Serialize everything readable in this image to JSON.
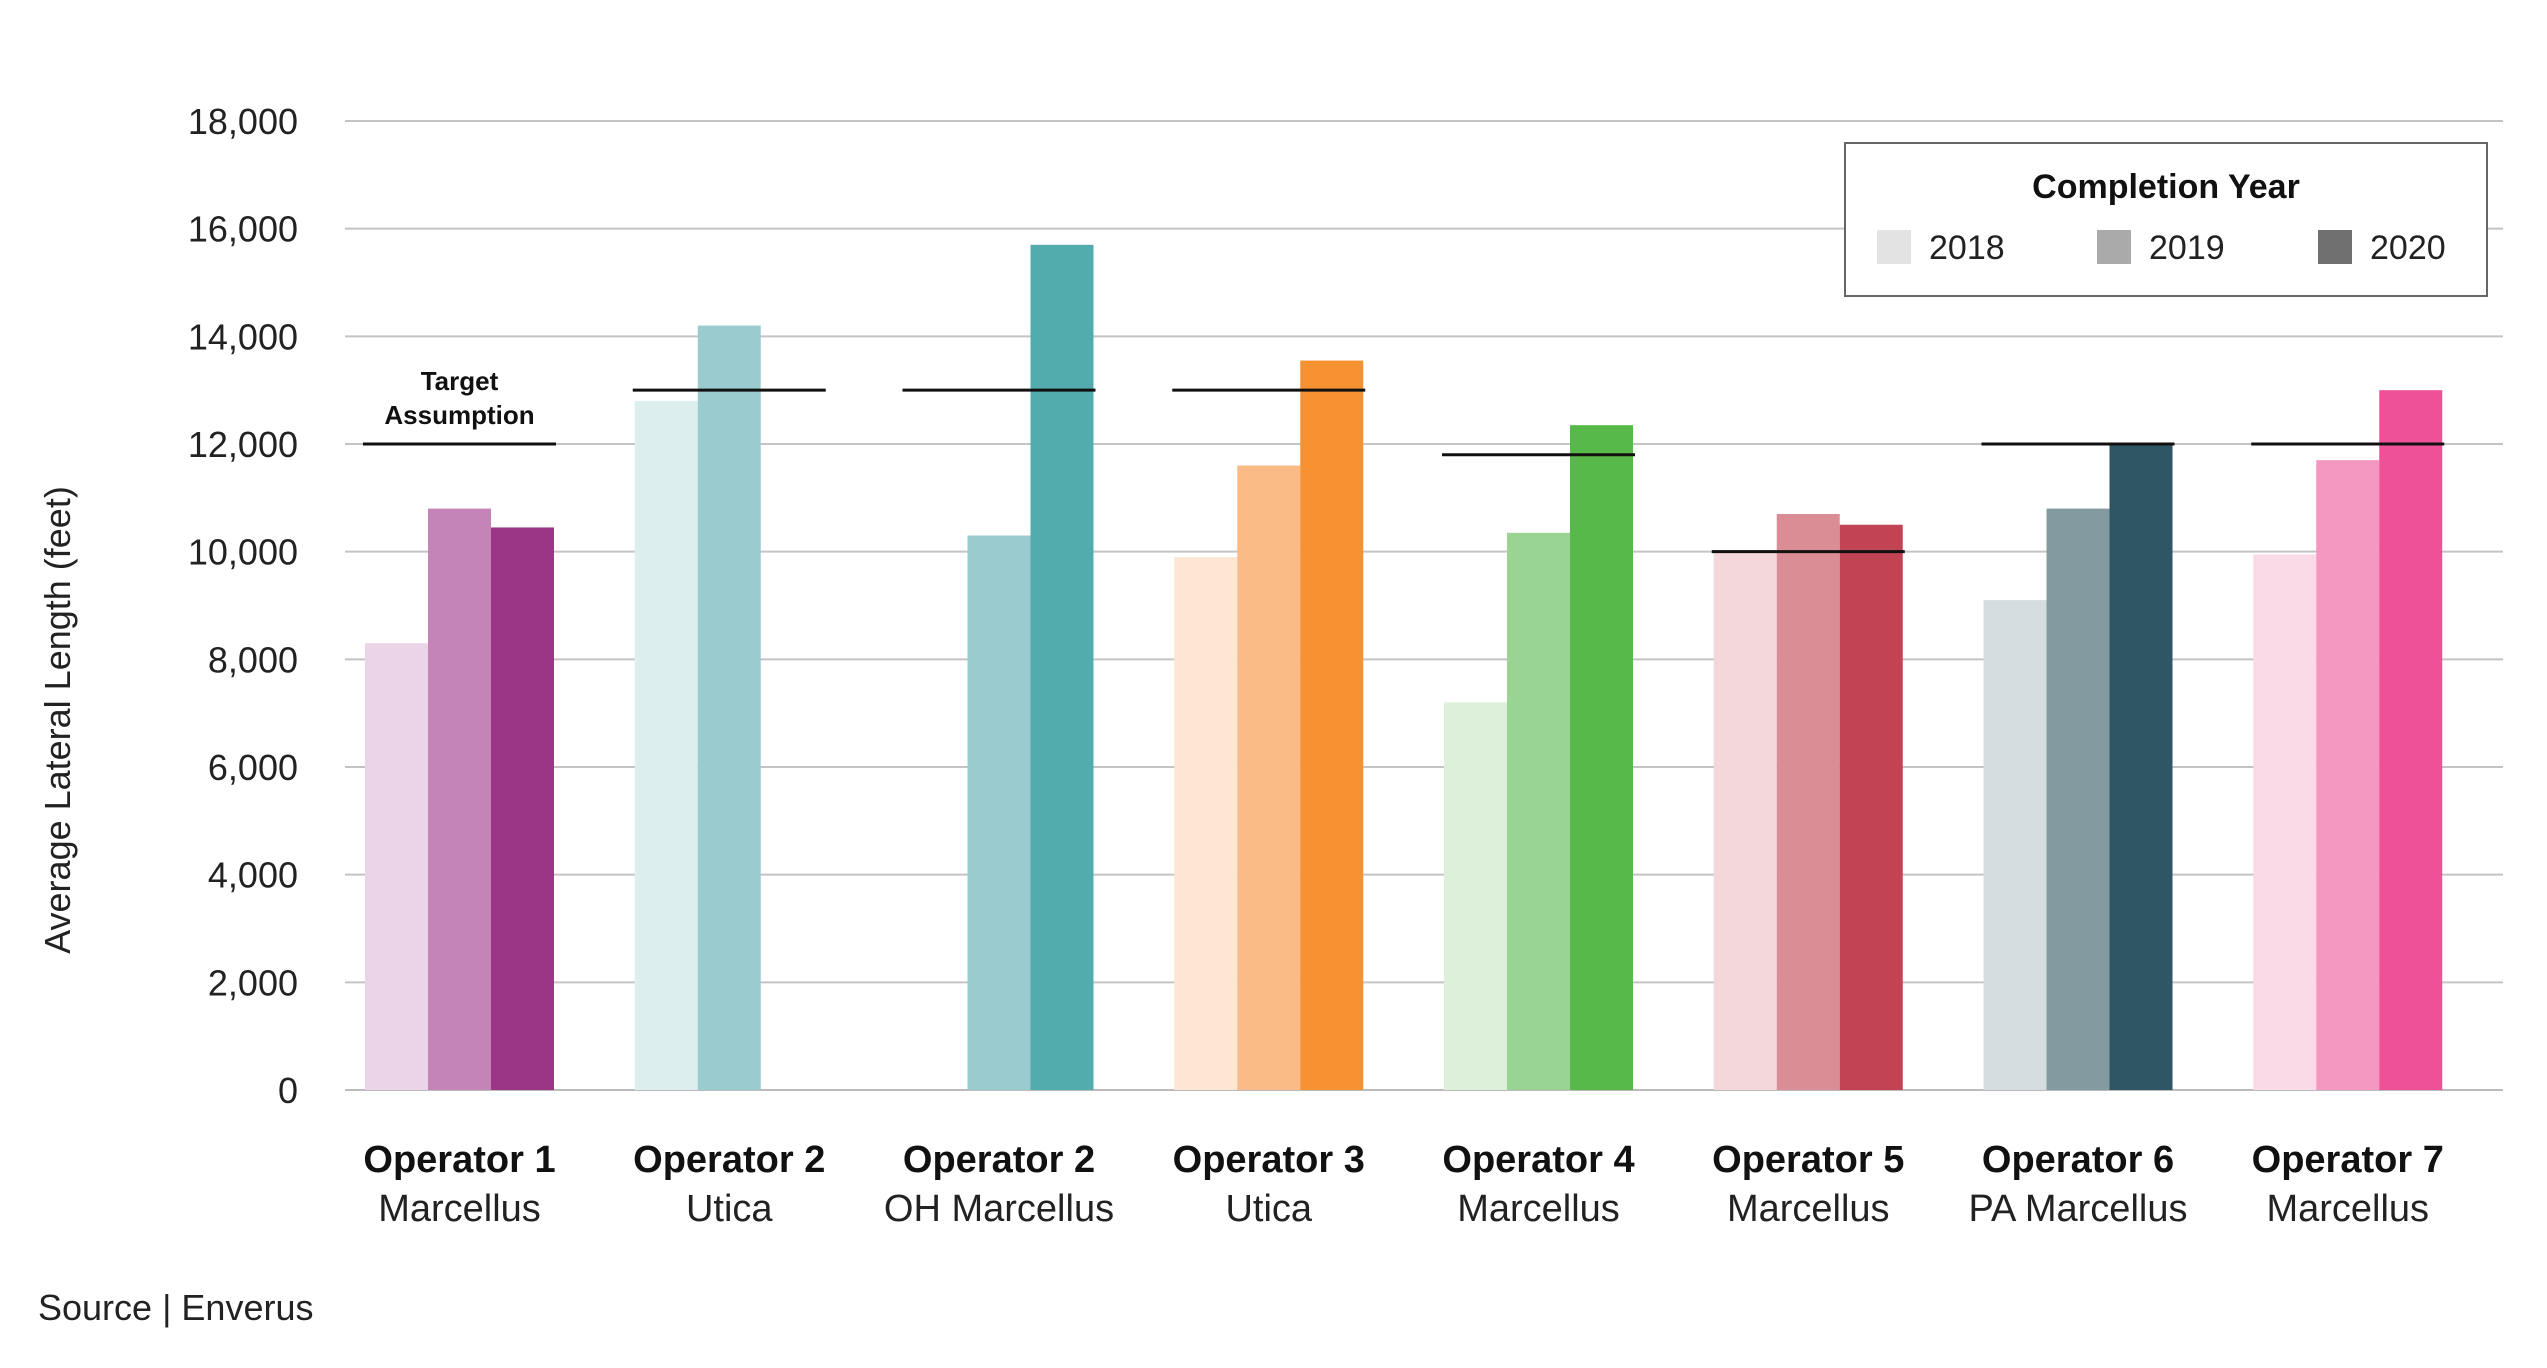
{
  "chart_data": {
    "type": "bar",
    "title": "",
    "ylabel": "Average Lateral Length (feet)",
    "xlabel": "",
    "ylim": [
      0,
      18000
    ],
    "yticks": [
      0,
      2000,
      4000,
      6000,
      8000,
      10000,
      12000,
      14000,
      16000,
      18000
    ],
    "ytick_labels": [
      "0",
      "2,000",
      "4,000",
      "6,000",
      "8,000",
      "10,000",
      "12,000",
      "14,000",
      "16,000",
      "18,000"
    ],
    "grid": "horizontal",
    "legend": {
      "title": "Completion Year",
      "placement": "top-right",
      "entries": [
        "2018",
        "2019",
        "2020"
      ],
      "swatch_colors": [
        "#e3e3e3",
        "#aaaaaa",
        "#707070"
      ]
    },
    "categories": [
      {
        "name": "Operator 1",
        "sub": "Marcellus"
      },
      {
        "name": "Operator 2",
        "sub": "Utica"
      },
      {
        "name": "Operator 2",
        "sub": "OH Marcellus"
      },
      {
        "name": "Operator 3",
        "sub": "Utica"
      },
      {
        "name": "Operator 4",
        "sub": "Marcellus"
      },
      {
        "name": "Operator 5",
        "sub": "Marcellus"
      },
      {
        "name": "Operator 6",
        "sub": "PA Marcellus"
      },
      {
        "name": "Operator 7",
        "sub": "Marcellus"
      }
    ],
    "series": [
      {
        "name": "2018",
        "values": [
          8300,
          12800,
          null,
          9900,
          7200,
          10000,
          9100,
          9950
        ]
      },
      {
        "name": "2019",
        "values": [
          10800,
          14200,
          10300,
          11600,
          10350,
          10700,
          10800,
          11700
        ]
      },
      {
        "name": "2020",
        "values": [
          10450,
          null,
          15700,
          13550,
          12350,
          10500,
          12000,
          13000
        ]
      }
    ],
    "colors": [
      [
        "#ebd4e8",
        "#c484b8",
        "#9a3685"
      ],
      [
        "#dceeee",
        "#9acbce",
        null
      ],
      [
        null,
        "#9acbce",
        "#52acad"
      ],
      [
        "#fde6d4",
        "#fbbb86",
        "#f69232"
      ],
      [
        "#ddf1da",
        "#9ad492",
        "#58b94b"
      ],
      [
        "#f3d7da",
        "#da8d95",
        "#c24353"
      ],
      [
        "#d6dde1",
        "#839ba0",
        "#2e5664"
      ],
      [
        "#fbdae8",
        "#f497c1",
        "#ee5198"
      ]
    ],
    "targets": [
      12000,
      13000,
      13000,
      13000,
      11800,
      10000,
      12000,
      12000
    ],
    "annotation": {
      "line1": "Target",
      "line2": "Assumption"
    }
  },
  "source": "Source | Enverus"
}
